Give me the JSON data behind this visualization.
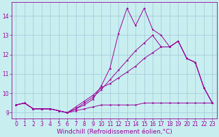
{
  "background_color": "#c8eef0",
  "grid_color": "#a0c8d8",
  "line_color": "#990099",
  "marker": "*",
  "xlabel": "Windchill (Refroidissement éolien,°C)",
  "xlabel_fontsize": 6.5,
  "tick_fontsize": 5.5,
  "xlim": [
    -0.5,
    23.5
  ],
  "ylim": [
    8.7,
    14.7
  ],
  "yticks": [
    9,
    10,
    11,
    12,
    13,
    14
  ],
  "xticks": [
    0,
    1,
    2,
    3,
    4,
    5,
    6,
    7,
    8,
    9,
    10,
    11,
    12,
    13,
    14,
    15,
    16,
    17,
    18,
    19,
    20,
    21,
    22,
    23
  ],
  "series": [
    [
      9.4,
      9.5,
      9.2,
      9.2,
      9.2,
      9.1,
      9.0,
      9.1,
      9.2,
      9.3,
      9.4,
      9.4,
      9.4,
      9.4,
      9.4,
      9.5,
      9.5,
      9.5,
      9.5,
      9.5,
      9.5,
      9.5,
      9.5,
      9.5
    ],
    [
      9.4,
      9.5,
      9.2,
      9.2,
      9.2,
      9.1,
      9.0,
      9.2,
      9.4,
      9.7,
      10.4,
      11.3,
      13.1,
      14.4,
      13.5,
      14.4,
      13.3,
      13.0,
      12.4,
      12.7,
      11.8,
      11.6,
      10.3,
      9.5
    ],
    [
      9.4,
      9.5,
      9.2,
      9.2,
      9.2,
      9.1,
      9.0,
      9.2,
      9.5,
      9.8,
      10.2,
      10.7,
      11.2,
      11.7,
      12.2,
      12.6,
      13.0,
      12.4,
      12.4,
      12.7,
      11.8,
      11.6,
      10.3,
      9.5
    ],
    [
      9.4,
      9.5,
      9.2,
      9.2,
      9.2,
      9.1,
      9.0,
      9.3,
      9.6,
      9.9,
      10.3,
      10.5,
      10.8,
      11.1,
      11.4,
      11.8,
      12.1,
      12.4,
      12.4,
      12.7,
      11.8,
      11.6,
      10.3,
      9.5
    ]
  ]
}
